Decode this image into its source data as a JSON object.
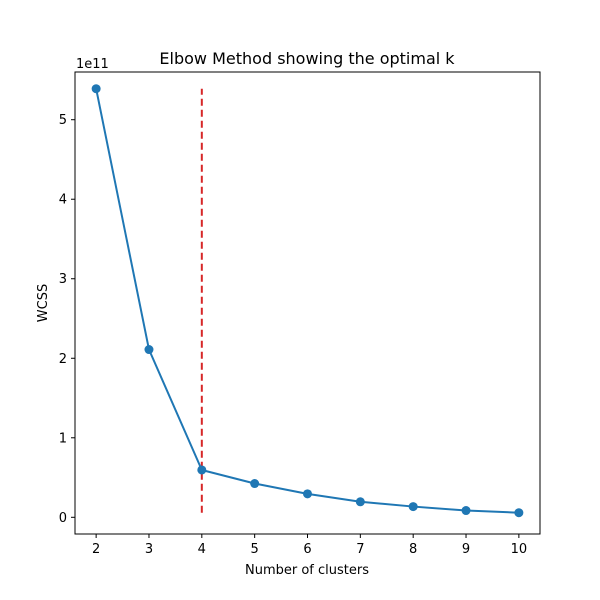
{
  "chart_data": {
    "type": "line",
    "title": "Elbow Method showing the optimal k",
    "xlabel": "Number of clusters",
    "ylabel": "WCSS",
    "y_offset_label": "1e11",
    "y_scale_factor": 100000000000,
    "x": [
      2,
      3,
      4,
      5,
      6,
      7,
      8,
      9,
      10
    ],
    "series": [
      {
        "values": [
          539000000000,
          211000000000,
          59500000000,
          42500000000,
          29500000000,
          19500000000,
          13500000000,
          8500000000,
          5800000000
        ],
        "color": "#1f77b4",
        "marker": "circle"
      }
    ],
    "xticks": [
      "2",
      "3",
      "4",
      "5",
      "6",
      "7",
      "8",
      "9",
      "10"
    ],
    "yticks": [
      "0",
      "1",
      "2",
      "3",
      "4",
      "5"
    ],
    "xlim": [
      1.6,
      10.4
    ],
    "ylim": [
      -21000000000,
      560000000000
    ],
    "reference_line": {
      "x": 4,
      "y_range": [
        5800000000,
        539000000000
      ],
      "color": "#d62728",
      "style": "dashed"
    },
    "grid": false,
    "legend": "none"
  }
}
